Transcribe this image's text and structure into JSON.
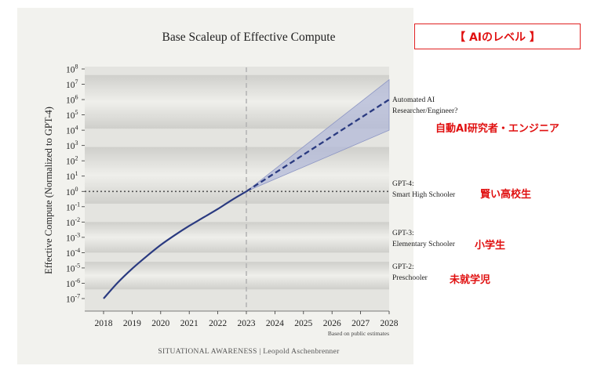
{
  "chart_data": {
    "type": "line",
    "title": "Base Scaleup of Effective Compute",
    "ylabel": "Effective Compute (Normalized to GPT-4)",
    "xlabel": "",
    "x_ticks": [
      "2018",
      "2019",
      "2020",
      "2021",
      "2022",
      "2023",
      "2024",
      "2025",
      "2026",
      "2027",
      "2028"
    ],
    "y_ticks": [
      {
        "base": "10",
        "exp": "8"
      },
      {
        "base": "10",
        "exp": "7"
      },
      {
        "base": "10",
        "exp": "6"
      },
      {
        "base": "10",
        "exp": "5"
      },
      {
        "base": "10",
        "exp": "4"
      },
      {
        "base": "10",
        "exp": "3"
      },
      {
        "base": "10",
        "exp": "2"
      },
      {
        "base": "10",
        "exp": "1"
      },
      {
        "base": "10",
        "exp": "0"
      },
      {
        "base": "10",
        "exp": "-1"
      },
      {
        "base": "10",
        "exp": "-2"
      },
      {
        "base": "10",
        "exp": "-3"
      },
      {
        "base": "10",
        "exp": "-4"
      },
      {
        "base": "10",
        "exp": "-5"
      },
      {
        "base": "10",
        "exp": "-6"
      },
      {
        "base": "10",
        "exp": "-7"
      }
    ],
    "xlim": [
      2017.5,
      2028
    ],
    "ylim_log10": [
      -7.5,
      8
    ],
    "y_scale": "log",
    "grid": false,
    "historical": {
      "x": [
        2018,
        2018.5,
        2019,
        2019.5,
        2020,
        2020.5,
        2021,
        2021.5,
        2022,
        2022.5,
        2023
      ],
      "log10_y": [
        -7,
        -5.95,
        -5.05,
        -4.25,
        -3.5,
        -2.85,
        -2.25,
        -1.7,
        -1.15,
        -0.55,
        0
      ]
    },
    "projection": {
      "x": [
        2023,
        2028
      ],
      "log10_y": [
        0,
        6
      ],
      "upper_log10_y": [
        0,
        7.3
      ],
      "lower_log10_y": [
        0,
        4
      ]
    },
    "reference_lines": {
      "vertical_x": 2023,
      "horizontal_log10_y": 0
    },
    "annotations": [
      {
        "lines": [
          "Automated AI",
          "Researcher/Engineer?"
        ]
      },
      {
        "lines": [
          "GPT-4:",
          "Smart High Schooler"
        ]
      },
      {
        "lines": [
          "GPT-3:",
          "Elementary Schooler"
        ]
      },
      {
        "lines": [
          "GPT-2:",
          "Preschooler"
        ]
      }
    ],
    "footnote": "Based on public estimates",
    "credit": "SITUATIONAL AWARENESS | Leopold Aschenbrenner"
  },
  "colors": {
    "line": "#2a3a80",
    "band": "#b3b9d8",
    "band_edge": "#8d96c4",
    "reference": "#555555",
    "vertical_ref": "#b0b0b0",
    "plot_bg": "#dcdcd8",
    "card_bg": "#f2f2ee",
    "jp_red": "#e01010"
  },
  "overlay": {
    "header": "【 AIのレベル 】",
    "labels": [
      "自動AI研究者・エンジニア",
      "賢い高校生",
      "小学生",
      "未就学児"
    ]
  }
}
